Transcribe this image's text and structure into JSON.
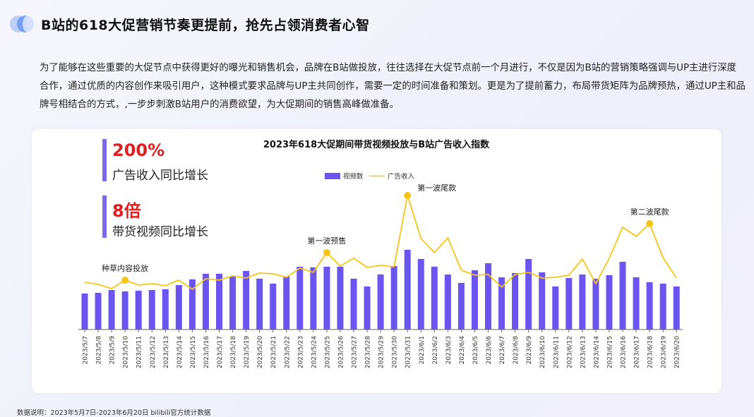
{
  "header": {
    "title": "B站的618大促营销节奏更提前，抢先占领消费者心智"
  },
  "intro_text": "为了能够在这些重要的大促节点中获得更好的曝光和销售机会，品牌在B站做投放，往往选择在大促节点前一个月进行，不仅是因为B站的营销策略强调与UP主进行深度合作，通过优质的内容创作来吸引用户，这种模式要求品牌与UP主共同创作，需要一定的时间准备和策划。更是为了提前蓄力，布局带货矩阵为品牌预热，通过UP主和品牌号相结合的方式，,一步步刺激B站用户的消费欲望，为大促期间的销售高峰做准备。",
  "stats": [
    {
      "value": "200%",
      "label": "广告收入同比增长"
    },
    {
      "value": "8倍",
      "label": "带货视频同比增长"
    }
  ],
  "colors": {
    "bar": "#6b54f0",
    "line": "#f5c518",
    "accent_bar": "#7b69f0",
    "stat_value": "#e02020"
  },
  "chart_data": {
    "type": "bar+line",
    "title": "2023年618大促期间带货视频投放与B站广告收入指数",
    "legend": [
      "视频数",
      "广告收入"
    ],
    "legend_position": "top-center",
    "categories": [
      "2023/5/7",
      "2023/5/8",
      "2023/5/9",
      "2023/5/10",
      "2023/5/11",
      "2023/5/12",
      "2023/5/13",
      "2023/5/14",
      "2023/5/15",
      "2023/5/16",
      "2023/5/17",
      "2023/5/18",
      "2023/5/19",
      "2023/5/20",
      "2023/5/21",
      "2023/5/22",
      "2023/5/23",
      "2023/5/24",
      "2023/5/25",
      "2023/5/26",
      "2023/5/27",
      "2023/5/28",
      "2023/5/29",
      "2023/5/30",
      "2023/5/31",
      "2023/6/1",
      "2023/6/2",
      "2023/6/3",
      "2023/6/4",
      "2023/6/5",
      "2023/6/6",
      "2023/6/7",
      "2023/6/8",
      "2023/6/9",
      "2023/6/10",
      "2023/6/11",
      "2023/6/12",
      "2023/6/13",
      "2023/6/14",
      "2023/6/15",
      "2023/6/16",
      "2023/6/17",
      "2023/6/18",
      "2023/6/19",
      "2023/6/20"
    ],
    "series": [
      {
        "name": "视频数",
        "type": "bar",
        "values": [
          51,
          52,
          56,
          54,
          55,
          56,
          57,
          63,
          71,
          79,
          79,
          75,
          83,
          72,
          65,
          75,
          89,
          88,
          89,
          89,
          72,
          61,
          78,
          90,
          113,
          100,
          89,
          78,
          66,
          84,
          94,
          74,
          80,
          100,
          81,
          61,
          73,
          78,
          72,
          77,
          96,
          74,
          67,
          65,
          61
        ]
      },
      {
        "name": "广告收入",
        "type": "line",
        "values": [
          67,
          64,
          58,
          70,
          63,
          65,
          62,
          70,
          57,
          72,
          70,
          76,
          73,
          80,
          79,
          74,
          87,
          81,
          109,
          90,
          101,
          88,
          91,
          89,
          190,
          129,
          109,
          130,
          84,
          77,
          78,
          60,
          78,
          81,
          73,
          74,
          77,
          100,
          65,
          101,
          145,
          132,
          150,
          102,
          73
        ]
      }
    ],
    "ylim": [
      0,
      200
    ],
    "annotations": [
      {
        "label": "种草内容投放",
        "index": 3
      },
      {
        "label": "第一波预售",
        "index": 18
      },
      {
        "label": "第一波尾款",
        "index": 24
      },
      {
        "label": "第二波尾款",
        "index": 42
      }
    ]
  },
  "footer": "数据说明：2023年5月7日-2023年6月20日 bilibili官方统计数据"
}
